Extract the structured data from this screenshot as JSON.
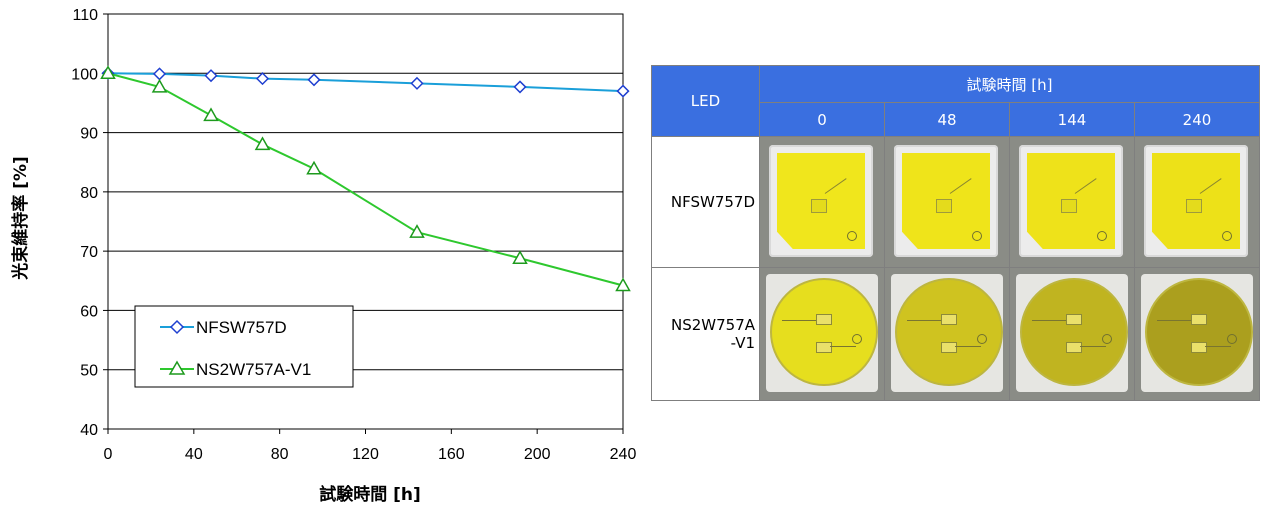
{
  "chart_data": {
    "type": "line",
    "xlabel": "試験時間 [h]",
    "ylabel": "光束維持率 [%]",
    "xlim": [
      0,
      240
    ],
    "ylim": [
      40,
      110
    ],
    "xticks": [
      0,
      40,
      80,
      120,
      160,
      200,
      240
    ],
    "yticks": [
      40,
      50,
      60,
      70,
      80,
      90,
      100,
      110
    ],
    "grid": "horizontal",
    "legend_position": "lower-left",
    "series": [
      {
        "name": "NFSW757D",
        "marker": "diamond",
        "color": "#1a9fd9",
        "marker_color": "#1f3fd0",
        "x": [
          0,
          24,
          48,
          72,
          96,
          144,
          192,
          240
        ],
        "y": [
          100,
          99.9,
          99.6,
          99.1,
          98.9,
          98.3,
          97.7,
          97.0
        ]
      },
      {
        "name": "NS2W757A-V1",
        "marker": "triangle",
        "color": "#2ec82e",
        "marker_color": "#1d9a1d",
        "x": [
          0,
          24,
          48,
          72,
          96,
          144,
          192,
          240
        ],
        "y": [
          100,
          97.7,
          92.9,
          88.0,
          83.9,
          73.2,
          68.8,
          64.2
        ]
      }
    ]
  },
  "table": {
    "led_header": "LED",
    "time_header": "試験時間 [h]",
    "hours": [
      "0",
      "48",
      "144",
      "240"
    ],
    "rows": [
      {
        "label": "NFSW757D",
        "shape": "square",
        "chip_colors": [
          "#f0e61c",
          "#efe41a",
          "#eee21a",
          "#ede118"
        ]
      },
      {
        "label_lines": [
          "NS2W757A",
          "-V1"
        ],
        "shape": "round",
        "chip_colors": [
          "#e6de1e",
          "#cfc320",
          "#c0b420",
          "#ab9f1e"
        ]
      }
    ]
  }
}
